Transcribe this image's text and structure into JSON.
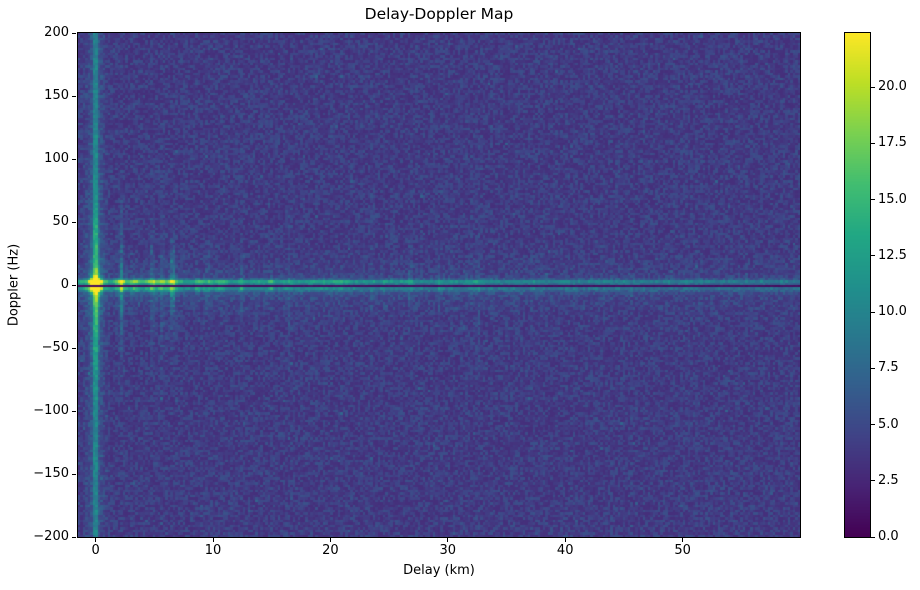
{
  "chart_data": {
    "type": "heatmap",
    "title": "Delay-Doppler Map",
    "xlabel": "Delay (km)",
    "ylabel": "Doppler (Hz)",
    "xlim": [
      -1.5,
      60
    ],
    "ylim": [
      -200,
      200
    ],
    "clim": [
      0,
      22.4
    ],
    "grid": false,
    "xticks": {
      "values": [
        0,
        10,
        20,
        30,
        40,
        50
      ],
      "labels": [
        "0",
        "10",
        "20",
        "30",
        "40",
        "50"
      ]
    },
    "yticks": {
      "values": [
        200,
        150,
        100,
        50,
        0,
        -50,
        -100,
        -150,
        -200
      ],
      "labels": [
        "200",
        "150",
        "100",
        "50",
        "0",
        "−50",
        "−100",
        "−150",
        "−200"
      ]
    },
    "colorbar": {
      "position": "right",
      "tick_values": [
        0,
        2.5,
        5,
        7.5,
        10,
        12.5,
        15,
        17.5,
        20
      ],
      "tick_labels": [
        "0.0",
        "2.5",
        "5.0",
        "7.5",
        "10.0",
        "12.5",
        "15.0",
        "17.5",
        "20.0"
      ]
    },
    "colormap": {
      "name": "viridis",
      "stops": [
        [
          0.0,
          68,
          1,
          84
        ],
        [
          0.1,
          72,
          36,
          117
        ],
        [
          0.2,
          64,
          67,
          135
        ],
        [
          0.3,
          52,
          95,
          141
        ],
        [
          0.4,
          41,
          121,
          142
        ],
        [
          0.5,
          32,
          145,
          140
        ],
        [
          0.6,
          34,
          168,
          132
        ],
        [
          0.7,
          66,
          190,
          113
        ],
        [
          0.8,
          122,
          209,
          81
        ],
        [
          0.9,
          189,
          223,
          38
        ],
        [
          1.0,
          253,
          231,
          37
        ]
      ]
    },
    "render_model": {
      "seed": 1337,
      "grid": {
        "cols": 289,
        "rows": 202
      },
      "noise": {
        "base": 3.0,
        "spread": 2.7,
        "power": 1.6,
        "hot_prob": 0.015,
        "hot_extra": 1.8
      },
      "zero_delay_stripe": {
        "amp_core": 5.0,
        "sigma_core_km": 0.2,
        "amp_halo": 1.8,
        "sigma_halo_km": 0.7,
        "doppler_boost": 0.8,
        "doppler_boost_sigma_hz": 70
      },
      "zero_doppler_ridge": {
        "base_amp": 5.2,
        "base_decay_km": 30,
        "base_floor": 3.6,
        "band_center_hz": 2.6,
        "band_sigma_hz": 2.0,
        "lower_center_hz": -3.0,
        "lower_sigma_hz": 2.6,
        "lower_ratio": 0.55,
        "glow_ratio": 0.35,
        "glow_sigma_hz": 10,
        "blob_amp_min": 2.0,
        "blob_amp_rand": 9.0,
        "blob_decay_km": 16,
        "blob_spacing_min_km": 0.5,
        "blob_spacing_rand_km": 1.8,
        "blob_sigma_min_km": 0.22,
        "blob_sigma_rand_km": 0.5
      },
      "streaks": {
        "prob": 0.5,
        "amp_ratio_min": 0.08,
        "amp_ratio_rand": 0.12,
        "sigma_min_hz": 15,
        "sigma_rand_hz": 55,
        "width_km": 0.16
      },
      "dark_line": {
        "f_min_hz": -1.9,
        "f_max_hz": 0.2,
        "value": 0.5,
        "jitter": 0.5
      },
      "origin_peak": {
        "amp": 15,
        "sigma_d_km": 0.5,
        "ring_center_hz": 2.2,
        "ring_sigma_hz": 3.2,
        "flare_amp": 5.5,
        "flare_sigma_d_km": 0.45,
        "flare_sigma_f_hz": 13
      }
    }
  }
}
